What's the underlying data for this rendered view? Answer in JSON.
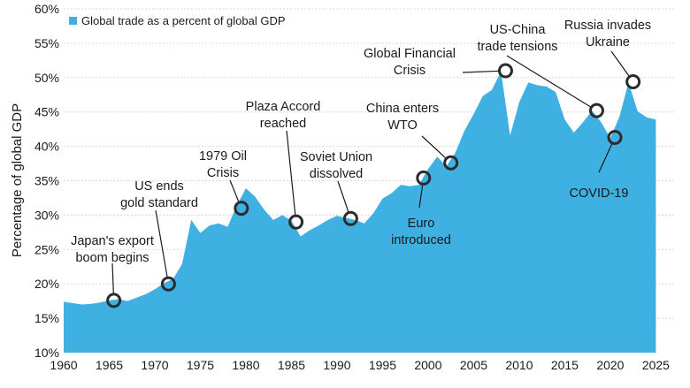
{
  "chart_data": {
    "type": "area",
    "title": "",
    "xlabel": "",
    "ylabel": "Percentage of global GDP",
    "xlim": [
      1960,
      2027
    ],
    "ylim": [
      10,
      60
    ],
    "grid": true,
    "legend_position": "top-left",
    "x_ticks": [
      1960,
      1965,
      1970,
      1975,
      1980,
      1985,
      1990,
      1995,
      2000,
      2005,
      2010,
      2015,
      2020,
      2025
    ],
    "y_ticks": [
      10,
      15,
      20,
      25,
      30,
      35,
      40,
      45,
      50,
      55,
      60
    ],
    "y_tick_labels": [
      "10%",
      "15%",
      "20%",
      "25%",
      "30%",
      "35%",
      "40%",
      "45%",
      "50%",
      "55%",
      "60%"
    ],
    "x_tick_labels": [
      "1960",
      "1965",
      "1970",
      "1975",
      "1980",
      "1985",
      "1990",
      "1995",
      "2000",
      "2005",
      "2010",
      "2015",
      "2020",
      "2025"
    ],
    "series": [
      {
        "name": "Global trade as a percent of global GDP",
        "color": "#3fb0e2",
        "x": [
          1960,
          1961,
          1962,
          1963,
          1964,
          1965,
          1966,
          1967,
          1968,
          1969,
          1970,
          1971,
          1972,
          1973,
          1974,
          1975,
          1976,
          1977,
          1978,
          1979,
          1980,
          1981,
          1982,
          1983,
          1984,
          1985,
          1986,
          1987,
          1988,
          1989,
          1990,
          1991,
          1992,
          1993,
          1994,
          1995,
          1996,
          1997,
          1998,
          1999,
          2000,
          2001,
          2002,
          2003,
          2004,
          2005,
          2006,
          2007,
          2008,
          2009,
          2010,
          2011,
          2012,
          2013,
          2014,
          2015,
          2016,
          2017,
          2018,
          2019,
          2020,
          2021,
          2022,
          2023,
          2024,
          2025
        ],
        "values": [
          17.4,
          17.2,
          17.0,
          17.1,
          17.3,
          17.6,
          17.8,
          17.5,
          18.0,
          18.5,
          19.2,
          20.1,
          20.7,
          22.9,
          29.3,
          27.4,
          28.5,
          28.8,
          28.3,
          31.4,
          33.9,
          32.7,
          30.8,
          29.3,
          30.0,
          29.2,
          26.9,
          27.8,
          28.5,
          29.3,
          29.9,
          29.6,
          29.3,
          28.8,
          30.3,
          32.4,
          33.2,
          34.4,
          34.2,
          34.4,
          36.7,
          38.5,
          37.1,
          39.1,
          42.3,
          44.7,
          47.3,
          48.2,
          50.9,
          41.6,
          46.4,
          49.3,
          48.9,
          48.7,
          47.9,
          43.9,
          42.0,
          43.5,
          45.2,
          43.5,
          41.2,
          44.3,
          49.3,
          45.1,
          44.2,
          43.9
        ]
      }
    ],
    "annotations": [
      {
        "label": [
          "Japan's export",
          "boom begins"
        ],
        "x": 1965.5,
        "y": 17.6
      },
      {
        "label": [
          "US ends",
          "gold standard"
        ],
        "x": 1971.5,
        "y": 20.0
      },
      {
        "label": [
          "1979 Oil",
          "Crisis"
        ],
        "x": 1979.5,
        "y": 31.0
      },
      {
        "label": [
          "Plaza Accord",
          "reached"
        ],
        "x": 1985.5,
        "y": 29.0
      },
      {
        "label": [
          "Soviet Union",
          "dissolved"
        ],
        "x": 1991.5,
        "y": 29.5
      },
      {
        "label": [
          "Euro",
          "introduced"
        ],
        "x": 1999.5,
        "y": 35.4
      },
      {
        "label": [
          "China enters",
          "WTO"
        ],
        "x": 2002.5,
        "y": 37.6
      },
      {
        "label": [
          "Global Financial",
          "Crisis"
        ],
        "x": 2008.5,
        "y": 51.0
      },
      {
        "label": [
          "US-China",
          "trade tensions"
        ],
        "x": 2018.5,
        "y": 45.2
      },
      {
        "label": [
          "COVID-19"
        ],
        "x": 2020.5,
        "y": 41.3
      },
      {
        "label": [
          "Russia invades",
          "Ukraine"
        ],
        "x": 2022.5,
        "y": 49.4
      }
    ]
  }
}
